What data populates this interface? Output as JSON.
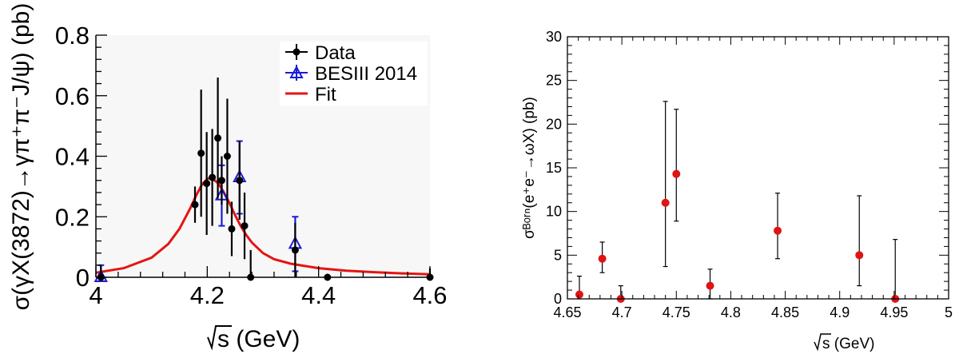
{
  "chart_data": [
    {
      "type": "scatter",
      "x_range": [
        4.0,
        4.6
      ],
      "y_range": [
        0.0,
        0.8
      ],
      "x_ticks": [
        "4",
        "4.2",
        "4.4",
        "4.6"
      ],
      "y_ticks": [
        "0",
        "0.2",
        "0.4",
        "0.6",
        "0.8"
      ],
      "xlabel_text": "s (GeV)",
      "ylabel_text": "σ(γX(3872)→γπ⁺π⁻J/ψ) (pb)",
      "legend": [
        {
          "label": "Data",
          "color": "#000000"
        },
        {
          "label": "BESIII 2014",
          "color": "#1a1ad8"
        },
        {
          "label": "Fit",
          "color": "#e51414"
        }
      ],
      "series": [
        {
          "name": "Data",
          "color": "#000000",
          "points": [
            {
              "x": 4.009,
              "y": 0.0,
              "err": 0.04
            },
            {
              "x": 4.178,
              "y": 0.24,
              "err": 0.06
            },
            {
              "x": 4.189,
              "y": 0.41,
              "err": 0.21
            },
            {
              "x": 4.199,
              "y": 0.31,
              "err": 0.17
            },
            {
              "x": 4.209,
              "y": 0.33,
              "err": 0.16
            },
            {
              "x": 4.219,
              "y": 0.46,
              "err": 0.2
            },
            {
              "x": 4.226,
              "y": 0.32,
              "err": 0.08
            },
            {
              "x": 4.236,
              "y": 0.4,
              "err": 0.19
            },
            {
              "x": 4.244,
              "y": 0.16,
              "err": 0.09
            },
            {
              "x": 4.258,
              "y": 0.32,
              "err": 0.13
            },
            {
              "x": 4.267,
              "y": 0.17,
              "err": 0.11
            },
            {
              "x": 4.278,
              "y": 0.0,
              "err": 0.09
            },
            {
              "x": 4.358,
              "y": 0.09,
              "err": 0.09
            },
            {
              "x": 4.416,
              "y": 0.0,
              "err": 0.0
            },
            {
              "x": 4.6,
              "y": 0.0,
              "err": 0.03
            }
          ]
        },
        {
          "name": "BESIII 2014",
          "color": "#1a1ad8",
          "points": [
            {
              "x": 4.009,
              "y": 0.0,
              "err": 0.04
            },
            {
              "x": 4.226,
              "y": 0.27,
              "err": 0.1
            },
            {
              "x": 4.258,
              "y": 0.33,
              "err": 0.12
            },
            {
              "x": 4.358,
              "y": 0.11,
              "err": 0.09
            }
          ]
        }
      ],
      "fit": {
        "name": "Fit",
        "color": "#e51414",
        "x": [
          4.0,
          4.05,
          4.1,
          4.13,
          4.15,
          4.17,
          4.18,
          4.19,
          4.2,
          4.205,
          4.21,
          4.22,
          4.23,
          4.24,
          4.25,
          4.26,
          4.27,
          4.28,
          4.3,
          4.32,
          4.35,
          4.4,
          4.45,
          4.5,
          4.55,
          4.6
        ],
        "y": [
          0.015,
          0.03,
          0.065,
          0.11,
          0.16,
          0.23,
          0.27,
          0.305,
          0.325,
          0.328,
          0.325,
          0.31,
          0.28,
          0.245,
          0.205,
          0.17,
          0.14,
          0.115,
          0.08,
          0.06,
          0.045,
          0.03,
          0.022,
          0.017,
          0.013,
          0.01
        ]
      }
    },
    {
      "type": "scatter",
      "x_range": [
        4.65,
        5.0
      ],
      "y_range": [
        0,
        30
      ],
      "x_ticks": [
        "4.65",
        "4.7",
        "4.75",
        "4.8",
        "4.85",
        "4.9",
        "4.95",
        "5"
      ],
      "y_ticks": [
        "0",
        "5",
        "10",
        "15",
        "20",
        "25",
        "30"
      ],
      "xlabel_text": "s (GeV)",
      "ylabel_text": "σᴮᵒʳⁿ(e⁺e⁻→ωX) (pb)",
      "series": [
        {
          "name": "",
          "color": "#e01414",
          "points": [
            {
              "x": 4.661,
              "y": 0.5,
              "err_lo": 0.5,
              "err_hi": 2.1
            },
            {
              "x": 4.682,
              "y": 4.6,
              "err_lo": 1.6,
              "err_hi": 1.9
            },
            {
              "x": 4.699,
              "y": 0.0,
              "err_lo": 0.0,
              "err_hi": 1.5
            },
            {
              "x": 4.74,
              "y": 11.0,
              "err_lo": 7.3,
              "err_hi": 11.6
            },
            {
              "x": 4.75,
              "y": 14.3,
              "err_lo": 5.4,
              "err_hi": 7.4
            },
            {
              "x": 4.781,
              "y": 1.5,
              "err_lo": 1.5,
              "err_hi": 1.9
            },
            {
              "x": 4.843,
              "y": 7.8,
              "err_lo": 3.2,
              "err_hi": 4.3
            },
            {
              "x": 4.918,
              "y": 5.0,
              "err_lo": 3.5,
              "err_hi": 6.8
            },
            {
              "x": 4.951,
              "y": 0.0,
              "err_lo": 0.0,
              "err_hi": 6.8
            }
          ]
        }
      ]
    }
  ]
}
